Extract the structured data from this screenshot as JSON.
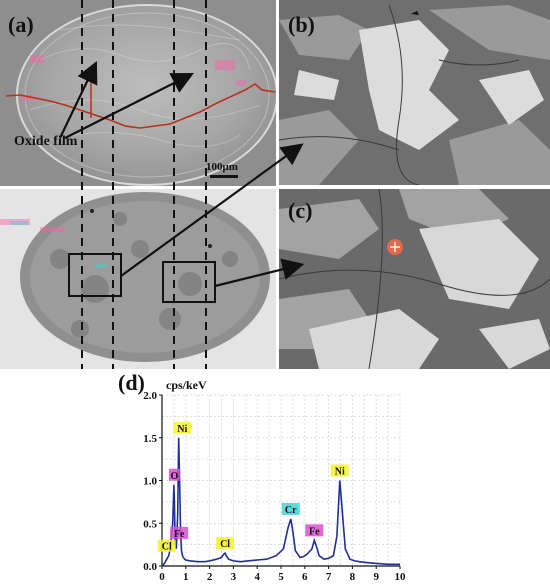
{
  "panels": {
    "a_label": "(a)",
    "b_label": "(b)",
    "c_label": "(c)",
    "d_label": "(d)"
  },
  "annotations": {
    "oxide_film": "Oxide film",
    "scale_bar": "100μm"
  },
  "colors": {
    "spectrum_line": "#1f2f9a",
    "peak_label_yellow": "#f3f32a",
    "peak_label_magenta": "#d94fd0",
    "peak_label_cyan": "#41d4d4",
    "profile_line": "#b8321b",
    "sem_dark": "#4c4c4c",
    "sem_light": "#d8d8d8"
  },
  "chart_data": {
    "type": "line",
    "title": "",
    "ylabel": "cps/keV",
    "xlabel": "",
    "xlim": [
      0,
      10
    ],
    "ylim": [
      0,
      2.0
    ],
    "x_ticks": [
      "0",
      "1",
      "2",
      "3",
      "4",
      "5",
      "6",
      "7",
      "8",
      "9",
      "10"
    ],
    "y_ticks": [
      "0.0",
      "0.5",
      "1.0",
      "1.5",
      "2.0"
    ],
    "grid": true,
    "series": [
      {
        "x": [
          0.0,
          0.1,
          0.2,
          0.28,
          0.35,
          0.45,
          0.5,
          0.52,
          0.55,
          0.6,
          0.66,
          0.7,
          0.74,
          0.78,
          0.82,
          0.86,
          0.9,
          0.95,
          1.0,
          1.2,
          1.5,
          1.8,
          2.0,
          2.3,
          2.5,
          2.6,
          2.65,
          2.7,
          2.8,
          3.0,
          3.3,
          3.6,
          4.0,
          4.4,
          4.8,
          5.1,
          5.3,
          5.41,
          5.5,
          5.6,
          5.8,
          5.95,
          6.1,
          6.3,
          6.4,
          6.5,
          6.6,
          6.8,
          7.0,
          7.2,
          7.35,
          7.47,
          7.6,
          7.7,
          7.9,
          8.1,
          8.3,
          8.6,
          9.0,
          9.5,
          10.0
        ],
        "y": [
          0.0,
          0.03,
          0.08,
          0.12,
          0.2,
          0.5,
          0.95,
          0.75,
          0.3,
          0.2,
          0.6,
          1.5,
          1.0,
          0.4,
          0.18,
          0.12,
          0.1,
          0.08,
          0.07,
          0.06,
          0.05,
          0.05,
          0.06,
          0.08,
          0.1,
          0.14,
          0.15,
          0.12,
          0.08,
          0.06,
          0.05,
          0.06,
          0.07,
          0.08,
          0.12,
          0.2,
          0.45,
          0.55,
          0.4,
          0.18,
          0.1,
          0.11,
          0.14,
          0.2,
          0.3,
          0.22,
          0.12,
          0.08,
          0.09,
          0.12,
          0.35,
          1.0,
          0.55,
          0.2,
          0.08,
          0.06,
          0.05,
          0.04,
          0.03,
          0.02,
          0.02
        ]
      }
    ],
    "peaks": [
      {
        "label": "Ni",
        "x": 0.85,
        "y": 1.5,
        "color": "yellow"
      },
      {
        "label": "O",
        "x": 0.52,
        "y": 0.95,
        "color": "magenta"
      },
      {
        "label": "Fe",
        "x": 0.72,
        "y": 0.27,
        "color": "magenta"
      },
      {
        "label": "Cl",
        "x": 0.2,
        "y": 0.12,
        "color": "yellow"
      },
      {
        "label": "Cl",
        "x": 2.65,
        "y": 0.15,
        "color": "yellow"
      },
      {
        "label": "Cr",
        "x": 5.41,
        "y": 0.55,
        "color": "cyan"
      },
      {
        "label": "Fe",
        "x": 6.4,
        "y": 0.3,
        "color": "magenta"
      },
      {
        "label": "Ni",
        "x": 7.47,
        "y": 1.0,
        "color": "yellow"
      }
    ]
  }
}
